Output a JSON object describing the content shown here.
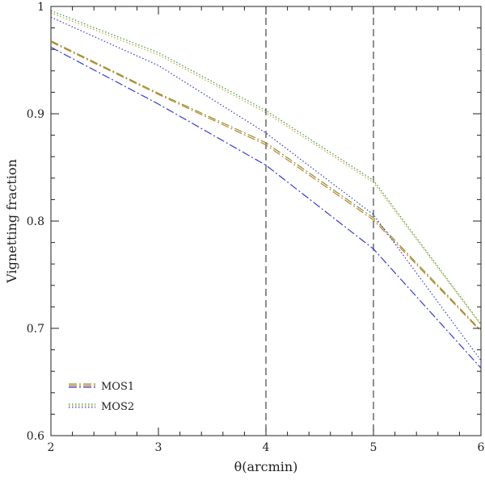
{
  "chart_data": {
    "type": "line",
    "xlabel": "θ(arcmin)",
    "ylabel": "Vignetting fraction",
    "xlim": [
      2,
      6
    ],
    "ylim": [
      0.6,
      1.0
    ],
    "x_ticks": [
      "2",
      "3",
      "4",
      "5",
      "6"
    ],
    "y_ticks": [
      "0.6",
      "0.7",
      "0.8",
      "0.9",
      "1"
    ],
    "x": [
      2,
      3,
      4,
      5,
      6
    ],
    "vlines": [
      4,
      5
    ],
    "legend_position": "bottom-left",
    "legend": [
      "MOS1",
      "MOS2"
    ],
    "series": [
      {
        "legend_group": "MOS1",
        "color": "#7a9a2c",
        "dash": "dash-dot",
        "values": [
          0.968,
          0.919,
          0.873,
          0.803,
          0.698
        ]
      },
      {
        "legend_group": "MOS1",
        "color": "#d07a30",
        "dash": "dash-dot",
        "values": [
          0.967,
          0.918,
          0.871,
          0.801,
          0.697
        ]
      },
      {
        "legend_group": "MOS1",
        "color": "#3a3ad0",
        "dash": "dash-dot",
        "values": [
          0.962,
          0.909,
          0.852,
          0.774,
          0.663
        ]
      },
      {
        "legend_group": "MOS2",
        "color": "#2a9a40",
        "dash": "dotted",
        "values": [
          0.996,
          0.957,
          0.903,
          0.838,
          0.704
        ]
      },
      {
        "legend_group": "MOS2",
        "color": "#c9a030",
        "dash": "dotted",
        "values": [
          0.994,
          0.955,
          0.901,
          0.836,
          0.703
        ]
      },
      {
        "legend_group": "MOS2",
        "color": "#3a3ad0",
        "dash": "dotted",
        "values": [
          0.99,
          0.945,
          0.882,
          0.806,
          0.67
        ]
      }
    ]
  }
}
